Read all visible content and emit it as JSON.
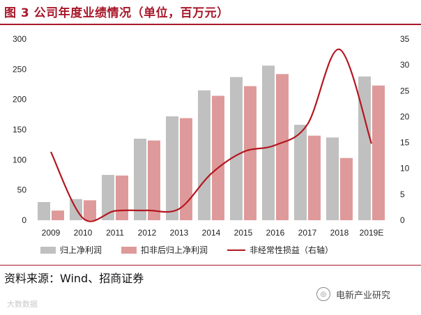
{
  "title": "图 3  公司年度业绩情况（单位，百万元）",
  "source": "资料来源：Wind、招商证券",
  "watermark_left": "大数数据",
  "watermark_right": "电新产业研究",
  "colors": {
    "bar1": "#c0c0c0",
    "bar2": "#de9a9a",
    "line": "#b4161f",
    "accent": "#a8172a"
  },
  "legend": [
    {
      "label": "归上净利润",
      "kind": "bar",
      "color": "#c0c0c0"
    },
    {
      "label": "扣非后归上净利润",
      "kind": "bar",
      "color": "#de9a9a"
    },
    {
      "label": "非经常性损益（右轴）",
      "kind": "line",
      "color": "#b4161f"
    }
  ],
  "chart_data": {
    "type": "bar",
    "categories": [
      "2009",
      "2010",
      "2011",
      "2012",
      "2013",
      "2014",
      "2015",
      "2016",
      "2017",
      "2018",
      "2019E"
    ],
    "series": [
      {
        "name": "归上净利润",
        "type": "bar",
        "axis": "left",
        "values": [
          30,
          35,
          75,
          135,
          172,
          215,
          237,
          256,
          158,
          137,
          238
        ]
      },
      {
        "name": "扣非后归上净利润",
        "type": "bar",
        "axis": "left",
        "values": [
          16,
          33,
          74,
          132,
          169,
          206,
          222,
          242,
          140,
          103,
          223
        ]
      },
      {
        "name": "非经常性损益（右轴）",
        "type": "line",
        "axis": "right",
        "values": [
          13.2,
          0.4,
          1.8,
          1.9,
          2.2,
          9.0,
          13.2,
          14.5,
          18.5,
          33.0,
          14.8
        ]
      }
    ],
    "yleft": {
      "ticks": [
        0,
        50,
        100,
        150,
        200,
        250,
        300
      ],
      "lim": [
        0,
        300
      ]
    },
    "yright": {
      "ticks": [
        0,
        5,
        10,
        15,
        20,
        25,
        30,
        35
      ],
      "lim": [
        0,
        35
      ]
    },
    "legend_position": "bottom",
    "grid": false
  }
}
